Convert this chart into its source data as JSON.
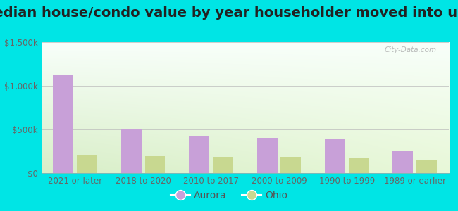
{
  "title": "Median house/condo value by year householder moved into unit",
  "categories": [
    "2021 or later",
    "2018 to 2020",
    "2010 to 2017",
    "2000 to 2009",
    "1990 to 1999",
    "1989 or earlier"
  ],
  "aurora_values": [
    1125000,
    510000,
    420000,
    400000,
    385000,
    255000
  ],
  "ohio_values": [
    205000,
    195000,
    185000,
    185000,
    175000,
    155000
  ],
  "aurora_color": "#c8a0d8",
  "ohio_color": "#c8d890",
  "background_outer": "#00e5e5",
  "background_inner_left": "#e8f5e0",
  "background_inner_right": "#f8fffa",
  "ylim": [
    0,
    1500000
  ],
  "yticks": [
    0,
    500000,
    1000000,
    1500000
  ],
  "ytick_labels": [
    "$0",
    "$500k",
    "$1,000k",
    "$1,500k"
  ],
  "title_fontsize": 14,
  "tick_fontsize": 8.5,
  "legend_labels": [
    "Aurora",
    "Ohio"
  ],
  "watermark": "① City-Data.com"
}
